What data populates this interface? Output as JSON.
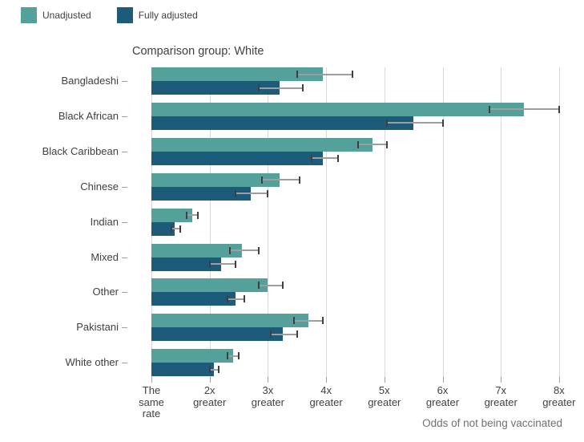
{
  "legend": {
    "items": [
      {
        "label": "Unadjusted",
        "color": "#54a09a"
      },
      {
        "label": "Fully adjusted",
        "color": "#1c5c7a"
      }
    ]
  },
  "chart_data": {
    "type": "bar",
    "orientation": "horizontal",
    "title": "Comparison group: White",
    "xlabel": "Odds of not being vaccinated",
    "categories": [
      "Bangladeshi",
      "Black African",
      "Black Caribbean",
      "Chinese",
      "Indian",
      "Mixed",
      "Other",
      "Pakistani",
      "White other"
    ],
    "series": [
      {
        "name": "Unadjusted",
        "color": "#54a09a",
        "values": [
          3.95,
          7.4,
          4.8,
          3.2,
          1.7,
          2.55,
          3.0,
          3.7,
          2.4
        ],
        "ci_low": [
          3.5,
          6.8,
          4.55,
          2.9,
          1.6,
          2.35,
          2.85,
          3.45,
          2.3
        ],
        "ci_high": [
          4.45,
          8.0,
          5.05,
          3.55,
          1.8,
          2.85,
          3.25,
          3.95,
          2.5
        ]
      },
      {
        "name": "Fully adjusted",
        "color": "#1c5c7a",
        "values": [
          3.2,
          5.5,
          3.95,
          2.7,
          1.4,
          2.2,
          2.45,
          3.25,
          2.07
        ],
        "ci_low": [
          2.85,
          5.05,
          3.75,
          2.45,
          1.35,
          2.0,
          2.3,
          3.05,
          2.0
        ],
        "ci_high": [
          3.6,
          6.0,
          4.2,
          3.0,
          1.5,
          2.45,
          2.6,
          3.5,
          2.15
        ]
      }
    ],
    "x_ticks": [
      {
        "value": 1,
        "label": "The same rate"
      },
      {
        "value": 2,
        "label": "2x greater"
      },
      {
        "value": 3,
        "label": "3x greater"
      },
      {
        "value": 4,
        "label": "4x greater"
      },
      {
        "value": 5,
        "label": "5x greater"
      },
      {
        "value": 6,
        "label": "6x greater"
      },
      {
        "value": 7,
        "label": "7x greater"
      },
      {
        "value": 8,
        "label": "8x greater"
      }
    ],
    "xlim": [
      1,
      8
    ],
    "grid": true,
    "legend_position": "top-left",
    "error_bars": true,
    "colors": {
      "gridline": "#d9d9d9",
      "error_cap": "#3f3f3f",
      "error_line": "#9e9e9e",
      "label_text": "#414042",
      "axis_title_text": "#707071"
    }
  }
}
